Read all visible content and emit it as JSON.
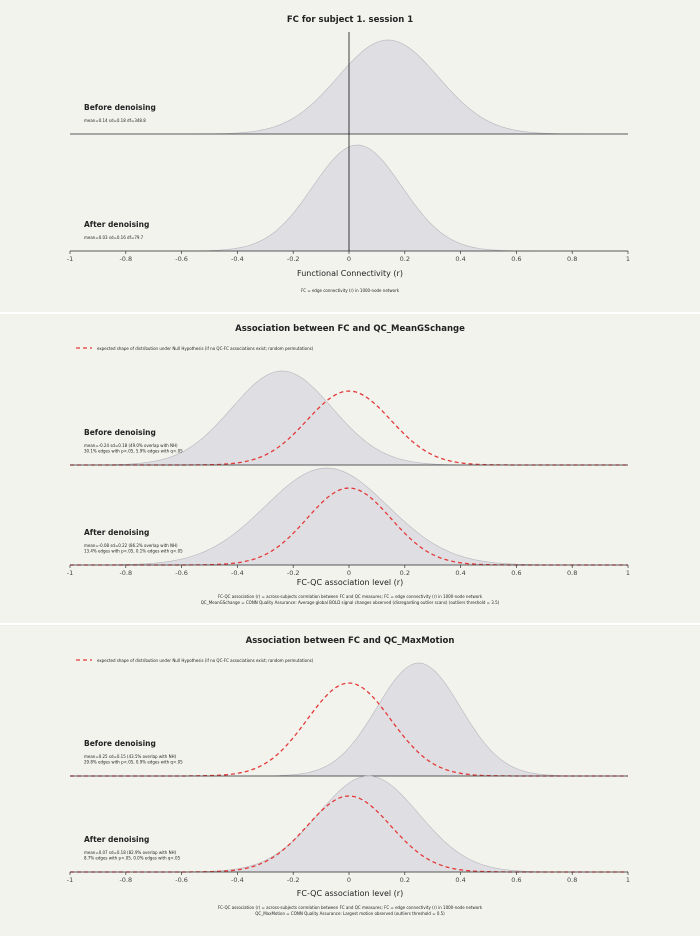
{
  "panels": [
    {
      "title": "FC for subject 1. session 1",
      "null_legend": "",
      "xlabel": "Functional Connectivity (r)",
      "footnotes": [
        "FC = edge connectivity (r) in 1000-node network"
      ],
      "rows": [
        {
          "label": "Before denoising",
          "stats": [
            "mean=0.14 sd=0.18 df=348.8"
          ]
        },
        {
          "label": "After denoising",
          "stats": [
            "mean=0.03 sd=0.16 df=79.7"
          ]
        }
      ]
    },
    {
      "title": "Association between FC and QC_MeanGSchange",
      "null_legend": "expected shape of distribution under Null Hypothesis (if no QC-FC associations exist; random permutations)",
      "xlabel": "FC-QC association level (r)",
      "footnotes": [
        "FC-QC association (r) = across-subjects correlation between FC and QC measures; FC = edge connectivity (r) in 1000-node network",
        "QC_MeanGSchange = CONN Quality Assurance: Average global BOLD signal changes observed (disregarding outlier scans) (outliers threshold = 3.5)"
      ],
      "rows": [
        {
          "label": "Before denoising",
          "stats": [
            "mean=-0.24 sd=0.18 (49.0% overlap with NH)",
            "30.1% edges with p<.05, 5.9% edges with q<.05"
          ]
        },
        {
          "label": "After denoising",
          "stats": [
            "mean=-0.08 sd=0.22 (86.2% overlap with NH)",
            "13.4% edges with p<.05, 0.1% edges with q<.05"
          ]
        }
      ]
    },
    {
      "title": "Association between FC and QC_MaxMotion",
      "null_legend": "expected shape of distribution under Null Hypothesis (if no QC-FC associations exist; random permutations)",
      "xlabel": "FC-QC association level (r)",
      "footnotes": [
        "FC-QC association (r) = across-subjects correlation between FC and QC measures; FC = edge connectivity (r) in 1000-node network",
        "QC_MaxMotion = CONN Quality Assurance: Largest motion observed (outliers threshold = 0.5)"
      ],
      "rows": [
        {
          "label": "Before denoising",
          "stats": [
            "mean=0.25 sd=0.15 (43.5% overlap with NH)",
            "29.8% edges with p<.05, 0.9% edges with q<.05"
          ]
        },
        {
          "label": "After denoising",
          "stats": [
            "mean=0.07 sd=0.18 (82.9% overlap with NH)",
            "8.7% edges with p<.05, 0.0% edges with q<.05"
          ]
        }
      ]
    }
  ],
  "colors": {
    "fill": "#dfdfe3",
    "fill_stroke": "#bcbcc2",
    "null_line": "#e43a3a",
    "axis": "#333333",
    "text": "#222222"
  },
  "chart_data": [
    {
      "type": "area",
      "title": "FC for subject 1. session 1",
      "xlabel": "Functional Connectivity (r)",
      "xlim": [
        -1,
        1
      ],
      "xticks": [
        -1,
        -0.8,
        -0.6,
        -0.4,
        -0.2,
        0,
        0.2,
        0.4,
        0.6,
        0.8,
        1
      ],
      "xtick_labels": [
        "-1",
        "-0.8",
        "-0.6",
        "-0.4",
        "-0.2",
        "0",
        "0.2",
        "0.4",
        "0.6",
        "0.8",
        "1"
      ],
      "null_curve": false,
      "series": [
        {
          "name": "Before denoising",
          "distribution": {
            "mean": 0.14,
            "sd": 0.18
          }
        },
        {
          "name": "After denoising",
          "distribution": {
            "mean": 0.03,
            "sd": 0.16
          }
        }
      ]
    },
    {
      "type": "area",
      "title": "Association between FC and QC_MeanGSchange",
      "xlabel": "FC-QC association level (r)",
      "xlim": [
        -1,
        1
      ],
      "xticks": [
        -1,
        -0.8,
        -0.6,
        -0.4,
        -0.2,
        0,
        0.2,
        0.4,
        0.6,
        0.8,
        1
      ],
      "xtick_labels": [
        "-1",
        "-0.8",
        "-0.6",
        "-0.4",
        "-0.2",
        "0",
        "0.2",
        "0.4",
        "0.6",
        "0.8",
        "1"
      ],
      "null_curve": true,
      "null_distribution": {
        "mean": 0,
        "sd": 0.15
      },
      "series": [
        {
          "name": "Before denoising",
          "distribution": {
            "mean": -0.24,
            "sd": 0.18
          }
        },
        {
          "name": "After denoising",
          "distribution": {
            "mean": -0.08,
            "sd": 0.22
          }
        }
      ]
    },
    {
      "type": "area",
      "title": "Association between FC and QC_MaxMotion",
      "xlabel": "FC-QC association level (r)",
      "xlim": [
        -1,
        1
      ],
      "xticks": [
        -1,
        -0.8,
        -0.6,
        -0.4,
        -0.2,
        0,
        0.2,
        0.4,
        0.6,
        0.8,
        1
      ],
      "xtick_labels": [
        "-1",
        "-0.8",
        "-0.6",
        "-0.4",
        "-0.2",
        "0",
        "0.2",
        "0.4",
        "0.6",
        "0.8",
        "1"
      ],
      "null_curve": true,
      "null_distribution": {
        "mean": 0,
        "sd": 0.15
      },
      "series": [
        {
          "name": "Before denoising",
          "distribution": {
            "mean": 0.25,
            "sd": 0.15
          }
        },
        {
          "name": "After denoising",
          "distribution": {
            "mean": 0.07,
            "sd": 0.18
          }
        }
      ]
    }
  ]
}
